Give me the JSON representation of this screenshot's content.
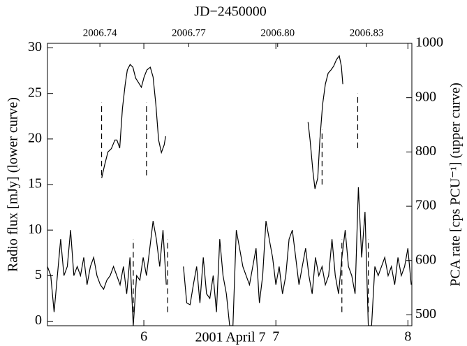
{
  "chart_data": {
    "type": "line",
    "title": "JD−2450000",
    "x_label": "2001 April 7",
    "y_label": "Radio flux [mJy] (lower curve)",
    "y2_label": "PCA rate [cps PCU⁻¹] (upper curve)",
    "xlim": [
      5.27,
      8.03
    ],
    "xticks": [
      6,
      7,
      8
    ],
    "x2lim": [
      2006.7223,
      2006.8453
    ],
    "x2ticks": [
      {
        "value": 2006.74,
        "label": "2006.74"
      },
      {
        "value": 2006.77,
        "label": "2006.77"
      },
      {
        "value": 2006.8,
        "label": "2006.80"
      },
      {
        "value": 2006.83,
        "label": "2006.83"
      }
    ],
    "ylim": [
      -0.5,
      30.5
    ],
    "yticks": [
      0,
      5,
      10,
      15,
      20,
      25,
      30
    ],
    "y2lim": [
      480,
      1000
    ],
    "y2ticks": [
      500,
      600,
      700,
      800,
      900,
      1000
    ],
    "series": [
      {
        "color": "#000000",
        "x": [
          5.27,
          5.295,
          5.32,
          5.345,
          5.37,
          5.395,
          5.42,
          5.445,
          5.47,
          5.495,
          5.52,
          5.545,
          5.57,
          5.595,
          5.62,
          5.645,
          5.67,
          5.695,
          5.72,
          5.745,
          5.77,
          5.795,
          5.82,
          5.845,
          5.87,
          5.895,
          5.92,
          5.945,
          5.97,
          5.995,
          6.02,
          6.045,
          6.07,
          6.095,
          6.12,
          6.145,
          6.17,
          6.23,
          6.3,
          6.325,
          6.35,
          6.375,
          6.4,
          6.425,
          6.45,
          6.475,
          6.5,
          6.525,
          6.55,
          6.575,
          6.6,
          6.625,
          6.65,
          6.675,
          6.7,
          6.725,
          6.75,
          6.775,
          6.8,
          6.825,
          6.85,
          6.875,
          6.9,
          6.925,
          6.95,
          6.975,
          7.0,
          7.025,
          7.05,
          7.075,
          7.1,
          7.125,
          7.15,
          7.175,
          7.2,
          7.225,
          7.25,
          7.275,
          7.3,
          7.325,
          7.35,
          7.375,
          7.4,
          7.425,
          7.45,
          7.475,
          7.5,
          7.525,
          7.55,
          7.575,
          7.6,
          7.625,
          7.65,
          7.675,
          7.7,
          7.725,
          7.75,
          7.775,
          7.8,
          7.825,
          7.85,
          7.875,
          7.9,
          7.925,
          7.95,
          7.975,
          8.0,
          8.025
        ],
        "values": [
          6,
          5,
          1,
          5,
          9,
          5,
          6,
          10,
          5,
          6,
          5,
          7,
          4,
          6,
          7,
          5,
          4,
          3.5,
          4.5,
          5,
          6,
          5,
          4,
          6,
          3,
          7,
          -0.5,
          5,
          4.5,
          7,
          5,
          8,
          11,
          9,
          6,
          10,
          4,
          null,
          6,
          2,
          1.8,
          4,
          6,
          2,
          7,
          3,
          2.5,
          5,
          1,
          9,
          5,
          3,
          -0.5,
          -0.5,
          10,
          8,
          6,
          5,
          4,
          6,
          8,
          2,
          5,
          11,
          9,
          7,
          4,
          6,
          3,
          5,
          9,
          10,
          7,
          4,
          6,
          8,
          5,
          3,
          7,
          5,
          6,
          4,
          5,
          9,
          5,
          3,
          7,
          10,
          6,
          5,
          3,
          14.7,
          7,
          12,
          -0.5,
          -0.5,
          6,
          5,
          6,
          7,
          5,
          6,
          4,
          7,
          5,
          6,
          8,
          4
        ]
      },
      {
        "color": "#000000",
        "axis": "y2",
        "x": [
          5.681,
          5.702,
          5.728,
          5.754,
          5.781,
          5.796,
          5.817,
          5.838,
          5.859,
          5.875,
          5.896,
          5.917,
          5.938,
          5.959,
          5.981,
          6.002,
          6.023,
          6.049,
          6.07,
          6.091,
          6.112,
          6.133,
          6.154,
          6.165,
          6.2,
          7.244,
          7.259,
          7.281,
          7.296,
          7.317,
          7.333,
          7.354,
          7.375,
          7.396,
          7.417,
          7.438,
          7.459,
          7.48,
          7.496,
          7.507
        ],
        "values": [
          752,
          775,
          800,
          806,
          822,
          822,
          807,
          880,
          925,
          951,
          961,
          956,
          936,
          928,
          919,
          938,
          951,
          956,
          938,
          887,
          822,
          799,
          813,
          829,
          null,
          855,
          822,
          764,
          732,
          752,
          822,
          887,
          925,
          945,
          951,
          958,
          970,
          977,
          958,
          925
        ]
      }
    ],
    "dashed_lines": [
      {
        "x": 5.68,
        "y": [
          16,
          24
        ]
      },
      {
        "x": 6.02,
        "y": [
          16,
          24
        ]
      },
      {
        "x": 5.92,
        "y": [
          1,
          9
        ]
      },
      {
        "x": 6.18,
        "y": [
          1,
          9
        ]
      },
      {
        "x": 7.35,
        "y": [
          15,
          21
        ]
      },
      {
        "x": 7.62,
        "y": [
          19,
          25
        ]
      },
      {
        "x": 7.5,
        "y": [
          1,
          9
        ]
      },
      {
        "x": 7.7,
        "y": [
          1,
          9
        ]
      }
    ]
  }
}
